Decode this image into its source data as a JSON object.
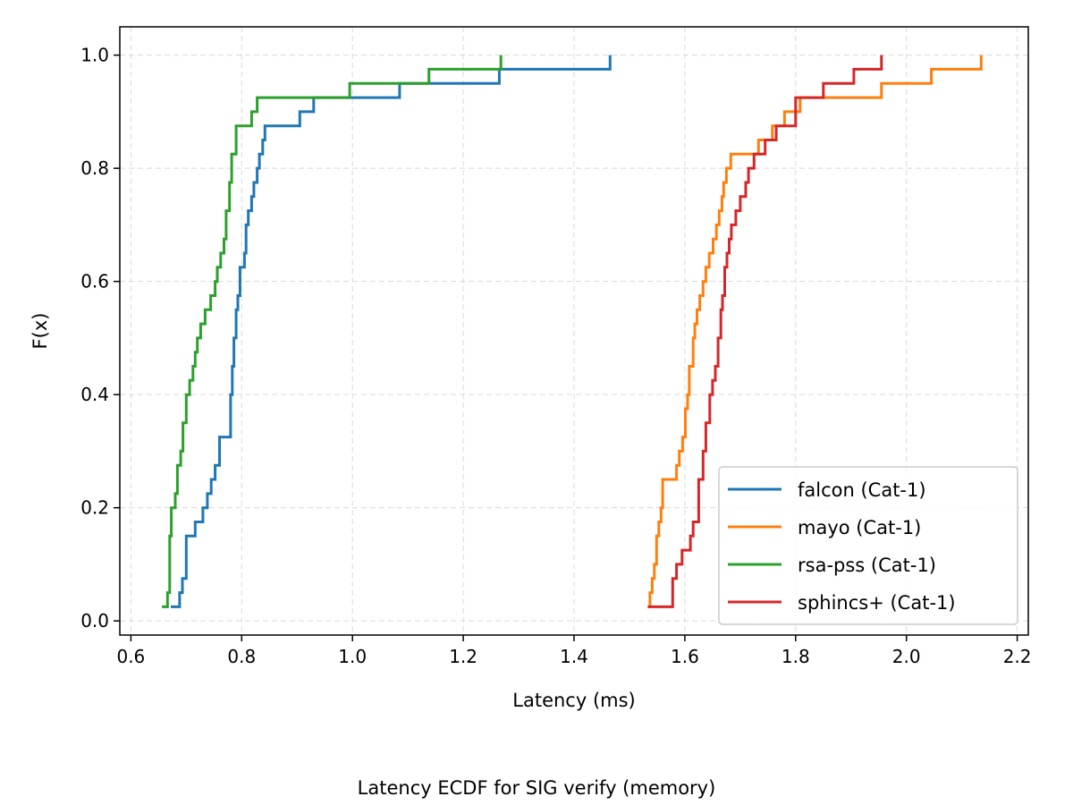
{
  "chart_data": {
    "type": "line",
    "step": true,
    "title": "",
    "caption": "Latency ECDF for SIG verify (memory)",
    "xlabel": "Latency (ms)",
    "ylabel": "F(x)",
    "xlim": [
      0.58,
      2.22
    ],
    "ylim": [
      -0.025,
      1.05
    ],
    "xticks": [
      0.6,
      0.8,
      1.0,
      1.2,
      1.4,
      1.6,
      1.8,
      2.0,
      2.2
    ],
    "xtick_labels": [
      "0.6",
      "0.8",
      "1.0",
      "1.2",
      "1.4",
      "1.6",
      "1.8",
      "2.0",
      "2.2"
    ],
    "yticks": [
      0.0,
      0.2,
      0.4,
      0.6,
      0.8,
      1.0
    ],
    "ytick_labels": [
      "0.0",
      "0.2",
      "0.4",
      "0.6",
      "0.8",
      "1.0"
    ],
    "grid": true,
    "legend_position": "lower-right",
    "series": [
      {
        "name": "falcon (Cat-1)",
        "color": "#1f77b4",
        "x": [
          0.672,
          0.688,
          0.693,
          0.7,
          0.716,
          0.73,
          0.738,
          0.745,
          0.752,
          0.76,
          0.78,
          0.783,
          0.786,
          0.79,
          0.793,
          0.797,
          0.805,
          0.808,
          0.812,
          0.818,
          0.822,
          0.828,
          0.832,
          0.838,
          0.842,
          0.845,
          0.88,
          0.905,
          0.93,
          1.085,
          1.265,
          1.465
        ],
        "y": [
          0.025,
          0.05,
          0.075,
          0.15,
          0.175,
          0.2,
          0.225,
          0.25,
          0.275,
          0.325,
          0.4,
          0.45,
          0.5,
          0.55,
          0.575,
          0.625,
          0.65,
          0.7,
          0.725,
          0.75,
          0.775,
          0.8,
          0.825,
          0.85,
          0.875,
          0.875,
          0.875,
          0.9,
          0.925,
          0.95,
          0.975,
          1.0
        ]
      },
      {
        "name": "mayo (Cat-1)",
        "color": "#ff7f0e",
        "x": [
          1.533,
          1.537,
          1.541,
          1.545,
          1.549,
          1.553,
          1.557,
          1.56,
          1.585,
          1.59,
          1.596,
          1.601,
          1.605,
          1.608,
          1.615,
          1.618,
          1.622,
          1.627,
          1.633,
          1.638,
          1.644,
          1.651,
          1.657,
          1.662,
          1.667,
          1.67,
          1.675,
          1.68,
          1.683,
          1.733,
          1.758,
          1.78,
          1.808,
          1.852,
          1.955,
          2.045,
          2.135
        ],
        "y": [
          0.025,
          0.05,
          0.075,
          0.1,
          0.15,
          0.175,
          0.2,
          0.25,
          0.275,
          0.3,
          0.325,
          0.375,
          0.4,
          0.45,
          0.5,
          0.525,
          0.55,
          0.575,
          0.6,
          0.625,
          0.65,
          0.675,
          0.7,
          0.725,
          0.75,
          0.775,
          0.8,
          0.8,
          0.825,
          0.85,
          0.875,
          0.9,
          0.925,
          0.925,
          0.95,
          0.975,
          1.0
        ]
      },
      {
        "name": "rsa-pss (Cat-1)",
        "color": "#2ca02c",
        "x": [
          0.656,
          0.666,
          0.67,
          0.673,
          0.68,
          0.684,
          0.69,
          0.694,
          0.7,
          0.706,
          0.712,
          0.716,
          0.72,
          0.726,
          0.734,
          0.744,
          0.752,
          0.756,
          0.762,
          0.768,
          0.772,
          0.778,
          0.782,
          0.79,
          0.808,
          0.818,
          0.828,
          0.995,
          1.138,
          1.268
        ],
        "y": [
          0.025,
          0.05,
          0.15,
          0.2,
          0.225,
          0.275,
          0.3,
          0.35,
          0.4,
          0.425,
          0.45,
          0.475,
          0.5,
          0.525,
          0.55,
          0.575,
          0.6,
          0.625,
          0.65,
          0.675,
          0.725,
          0.775,
          0.825,
          0.875,
          0.875,
          0.9,
          0.925,
          0.95,
          0.975,
          1.0
        ]
      },
      {
        "name": "sphincs+ (Cat-1)",
        "color": "#d62728",
        "x": [
          1.533,
          1.578,
          1.585,
          1.595,
          1.61,
          1.615,
          1.625,
          1.633,
          1.638,
          1.645,
          1.65,
          1.655,
          1.66,
          1.665,
          1.668,
          1.672,
          1.676,
          1.68,
          1.684,
          1.692,
          1.7,
          1.71,
          1.715,
          1.725,
          1.745,
          1.765,
          1.8,
          1.85,
          1.905,
          1.955
        ],
        "y": [
          0.025,
          0.075,
          0.1,
          0.125,
          0.15,
          0.175,
          0.25,
          0.3,
          0.35,
          0.4,
          0.425,
          0.45,
          0.5,
          0.55,
          0.575,
          0.625,
          0.65,
          0.675,
          0.7,
          0.725,
          0.75,
          0.775,
          0.8,
          0.825,
          0.85,
          0.875,
          0.925,
          0.95,
          0.975,
          1.0
        ]
      }
    ]
  }
}
